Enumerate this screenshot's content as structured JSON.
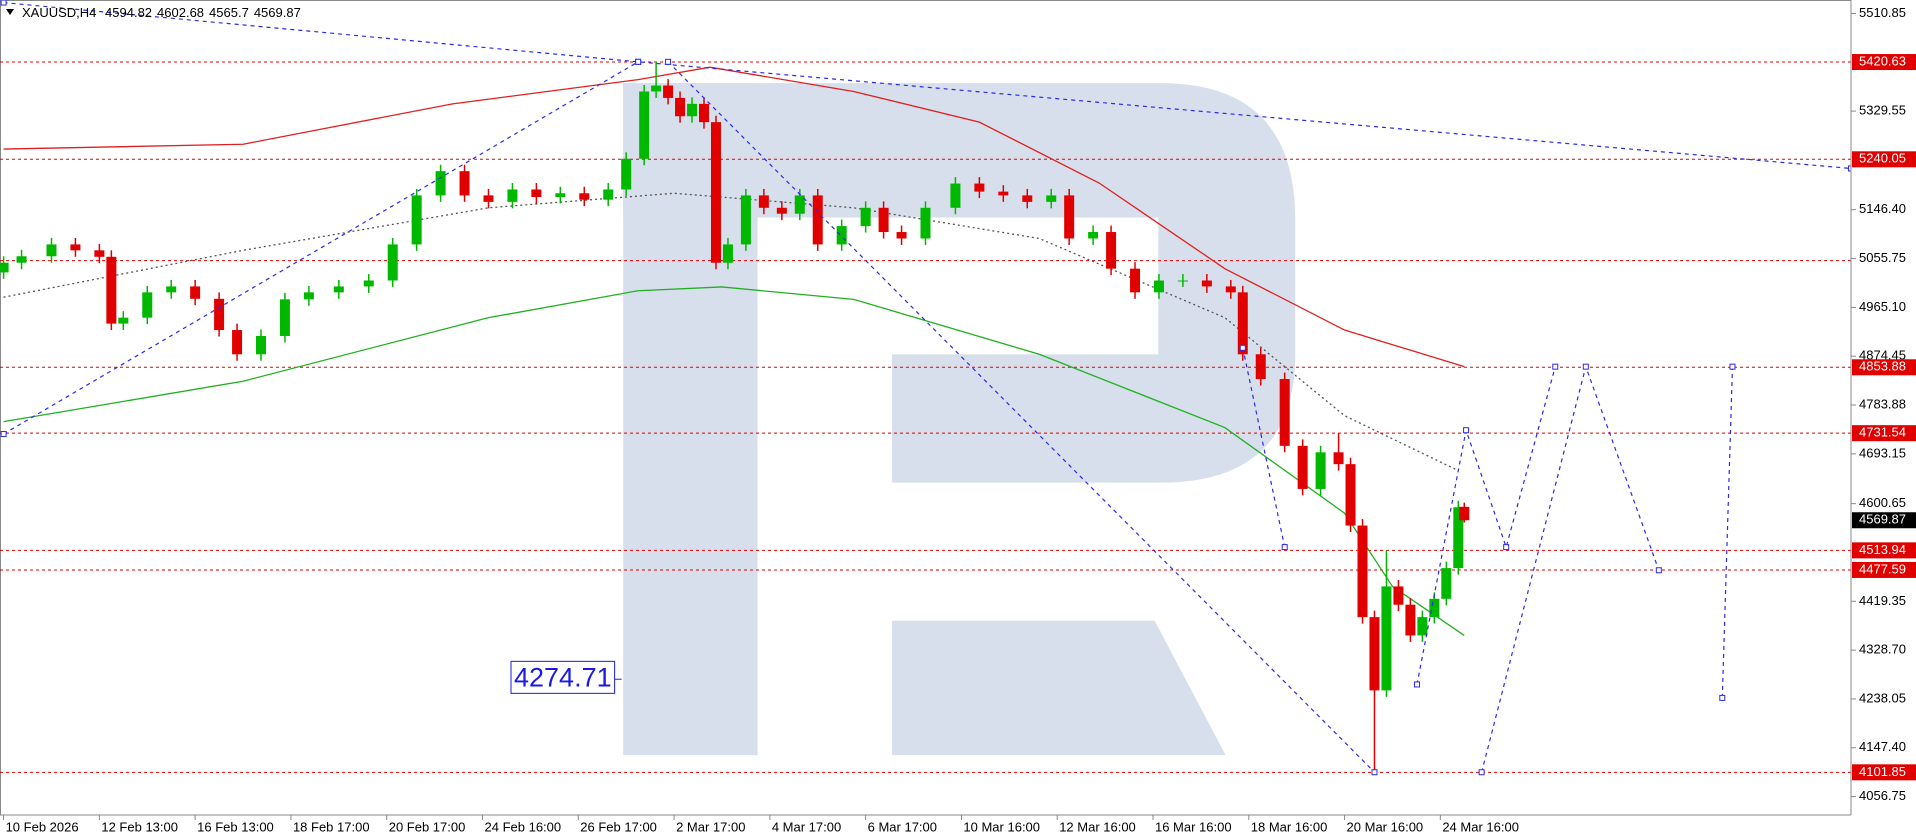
{
  "chart_data": {
    "type": "candlestick",
    "symbol": "XAUUSD,H4",
    "xlim": [
      -0.6,
      308.6
    ],
    "ylim": [
      4022.6,
      5535.8
    ],
    "xticks": [
      {
        "value": 0,
        "label": "10 Feb 2026"
      },
      {
        "value": 16,
        "label": "12 Feb 13:00"
      },
      {
        "value": 32,
        "label": "16 Feb 13:00"
      },
      {
        "value": 48,
        "label": "18 Feb 17:00"
      },
      {
        "value": 64,
        "label": "20 Feb 17:00"
      },
      {
        "value": 80,
        "label": "24 Feb 16:00"
      },
      {
        "value": 96,
        "label": "26 Feb 17:00"
      },
      {
        "value": 112,
        "label": "2 Mar 17:00"
      },
      {
        "value": 128,
        "label": "4 Mar 17:00"
      },
      {
        "value": 144,
        "label": "6 Mar 17:00"
      },
      {
        "value": 160,
        "label": "10 Mar 16:00"
      },
      {
        "value": 176,
        "label": "12 Mar 16:00"
      },
      {
        "value": 192,
        "label": "16 Mar 16:00"
      },
      {
        "value": 208,
        "label": "18 Mar 16:00"
      },
      {
        "value": 224,
        "label": "20 Mar 16:00"
      },
      {
        "value": 240,
        "label": "24 Mar 16:00"
      }
    ],
    "yticks": [
      5510.85,
      5329.55,
      {
        "value": 5146.4,
        "label": "5146.40"
      },
      5055.75,
      {
        "value": 4965.1,
        "label": "4965.10"
      },
      4874.45,
      4783.88,
      4693.15,
      4600.65,
      4419.35,
      {
        "value": 4328.7,
        "label": "4328.70"
      },
      4238.05,
      {
        "value": 4147.4,
        "label": "4147.40"
      },
      4056.75
    ],
    "candles": {
      "up_color": "#00b800",
      "down_color": "#e00000",
      "x": [
        0,
        3,
        8,
        12,
        16,
        18,
        20,
        24,
        28,
        32,
        36,
        39,
        43,
        47,
        51,
        56,
        61,
        65,
        69,
        73,
        77,
        81,
        85,
        89,
        93,
        97,
        101,
        104,
        107,
        109,
        111,
        113,
        115,
        117,
        119,
        121,
        124,
        127,
        130,
        133,
        136,
        140,
        144,
        147,
        150,
        154,
        159,
        163,
        167,
        171,
        175,
        178,
        182,
        185,
        189,
        193,
        197,
        201,
        205,
        207,
        210,
        214,
        217,
        220,
        223,
        225,
        227,
        229,
        231,
        233,
        235,
        237,
        239,
        241,
        243,
        244
      ],
      "open": [
        5030,
        5048,
        5060,
        5082,
        5071,
        5059,
        4935,
        4946,
        4993,
        5004,
        4981,
        4923,
        4878,
        4912,
        4980,
        4993,
        5004,
        5015,
        5082,
        5173,
        5218,
        5173,
        5161,
        5184,
        5170,
        5177,
        5165,
        5184,
        5241,
        5366,
        5377,
        5354,
        5320,
        5343,
        5309,
        5048,
        5082,
        5173,
        5150,
        5139,
        5173,
        5082,
        5116,
        5150,
        5105,
        5093,
        5150,
        5195,
        5180,
        5173,
        5161,
        5173,
        5093,
        5105,
        5037,
        4993,
        5015,
        5015,
        5004,
        4993,
        4878,
        4832,
        4708,
        4628,
        4696,
        4674,
        4560,
        4390,
        4254,
        4447,
        4413,
        4356,
        4390,
        4424,
        4481,
        4594.82
      ],
      "high": [
        5060,
        5072,
        5094,
        5094,
        5083,
        5071,
        4958,
        5005,
        5016,
        5016,
        4993,
        4935,
        4924,
        4992,
        5005,
        5016,
        5027,
        5094,
        5185,
        5230,
        5230,
        5185,
        5196,
        5196,
        5189,
        5189,
        5196,
        5253,
        5378,
        5421,
        5389,
        5366,
        5355,
        5355,
        5321,
        5094,
        5185,
        5185,
        5162,
        5185,
        5185,
        5128,
        5162,
        5162,
        5117,
        5162,
        5207,
        5207,
        5192,
        5185,
        5185,
        5185,
        5117,
        5117,
        5049,
        5027,
        5027,
        5027,
        5016,
        5005,
        4890,
        4844,
        4720,
        4708,
        4731,
        4686,
        4572,
        4402,
        4514,
        4459,
        4425,
        4402,
        4436,
        4493,
        4606,
        4602.68
      ],
      "low": [
        5018,
        5036,
        5048,
        5059,
        5047,
        4923,
        4923,
        4934,
        4981,
        4969,
        4911,
        4866,
        4866,
        4900,
        4968,
        4981,
        4992,
        5003,
        5070,
        5161,
        5161,
        5149,
        5149,
        5158,
        5158,
        5153,
        5153,
        5172,
        5229,
        5354,
        5342,
        5308,
        5308,
        5297,
        5036,
        5036,
        5070,
        5138,
        5127,
        5127,
        5070,
        5070,
        5104,
        5093,
        5081,
        5081,
        5138,
        5168,
        5161,
        5149,
        5149,
        5081,
        5081,
        5025,
        4981,
        4981,
        5003,
        4992,
        4981,
        4866,
        4820,
        4696,
        4616,
        4616,
        4662,
        4548,
        4378,
        4102,
        4242,
        4401,
        4344,
        4344,
        4378,
        4412,
        4469,
        4565.7
      ],
      "close": [
        5048,
        5060,
        5082,
        5071,
        5059,
        4935,
        4946,
        4993,
        5004,
        4981,
        4923,
        4878,
        4912,
        4980,
        4993,
        5004,
        5015,
        5082,
        5173,
        5218,
        5173,
        5161,
        5184,
        5170,
        5177,
        5165,
        5184,
        5241,
        5366,
        5377,
        5354,
        5320,
        5343,
        5309,
        5048,
        5082,
        5173,
        5150,
        5139,
        5173,
        5082,
        5116,
        5150,
        5105,
        5093,
        5150,
        5195,
        5180,
        5173,
        5161,
        5173,
        5093,
        5105,
        5037,
        4993,
        5015,
        5015,
        5004,
        4993,
        4878,
        4832,
        4708,
        4628,
        4696,
        4674,
        4560,
        4390,
        4254,
        4447,
        4413,
        4356,
        4390,
        4424,
        4481,
        4594,
        4569.87
      ]
    },
    "indicators": [
      {
        "color": "#e02020",
        "style": "solid",
        "x": [
          0,
          40,
          75,
          106,
          118,
          142,
          163,
          183,
          204,
          224,
          244
        ],
        "values": [
          5259,
          5268,
          5343,
          5388,
          5411,
          5366,
          5309,
          5196,
          5037,
          4923,
          4855
        ]
      },
      {
        "color": "#22b022",
        "style": "solid",
        "x": [
          0,
          40,
          81,
          106,
          120,
          142,
          173,
          204,
          224,
          232,
          244
        ],
        "values": [
          4753,
          4828,
          4946,
          4996,
          5003,
          4980,
          4878,
          4742,
          4583,
          4447,
          4356
        ]
      },
      {
        "color": "#555555",
        "style": "dotted",
        "x": [
          0,
          40,
          81,
          112,
          142,
          173,
          204,
          224,
          243
        ],
        "values": [
          4984,
          5071,
          5150,
          5177,
          5150,
          5093,
          4946,
          4764,
          4662
        ]
      }
    ],
    "forecasts": {
      "color": "#2a2aee",
      "paths": [
        {
          "x": [
            0,
            106
          ],
          "values": [
            4730,
            5421
          ]
        },
        {
          "x": [
            0,
            106,
            308.6
          ],
          "values": [
            5531,
            5421,
            5223
          ]
        },
        {
          "x": [
            111,
            229
          ],
          "values": [
            5421,
            4102
          ]
        },
        {
          "x": [
            207,
            214
          ],
          "values": [
            4890,
            4520
          ]
        },
        {
          "x": [
            236.1,
            244.3,
            251,
            259.2
          ],
          "values": [
            4265,
            4737,
            4520,
            4855
          ]
        },
        {
          "x": [
            246.9,
            264.3,
            276.5
          ],
          "values": [
            4102,
            4855,
            4477
          ]
        },
        {
          "x": [
            287.1,
            288.8
          ],
          "values": [
            4240,
            4855
          ]
        }
      ]
    },
    "levels": {
      "color": "#e00000",
      "values": [
        5420.63,
        5240.05,
        4853.88,
        4731.54,
        4513.94,
        4477.59,
        4101.85
      ]
    },
    "unlabeled_levels": [
      5052
    ],
    "annotation": {
      "value": 4274.71
    }
  }
}
